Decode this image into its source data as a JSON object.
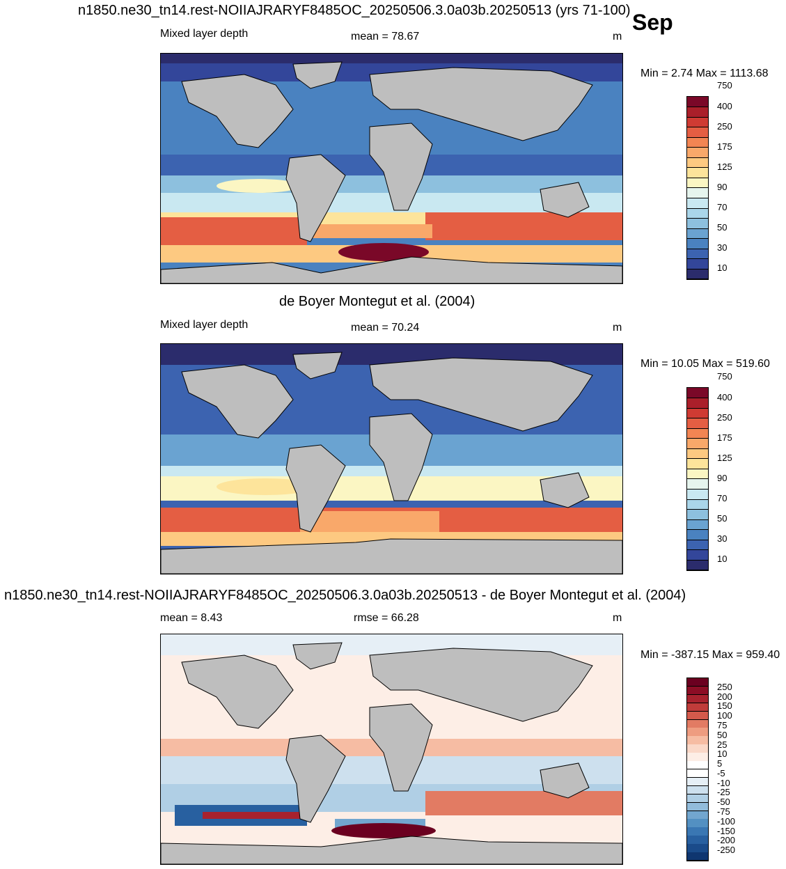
{
  "month": "Sep",
  "panels": [
    {
      "title": "n1850.ne30_tn14.rest-NOIIAJRARYF8485OC_20250506.3.0a03b.20250513 (yrs 71-100)",
      "left_label": "Mixed layer depth",
      "center_label": "mean =  78.67",
      "units": "m",
      "minmax": "Min =   2.74 Max = 1113.68",
      "colorbar": {
        "colors": [
          "#2b2c6c",
          "#33469a",
          "#3c63b0",
          "#4a82c0",
          "#6aa3d1",
          "#8dc0de",
          "#aad6ea",
          "#c9e8f1",
          "#e6f5ee",
          "#fbf6c3",
          "#fde49b",
          "#fdc981",
          "#f9a86a",
          "#f28553",
          "#e45e43",
          "#cf3b33",
          "#aa1f2a",
          "#7a0828"
        ],
        "ticks": [
          "10",
          "30",
          "50",
          "70",
          "90",
          "125",
          "175",
          "250",
          "400",
          "750"
        ]
      }
    },
    {
      "title": "de Boyer Montegut et al. (2004)",
      "left_label": "Mixed layer depth",
      "center_label": "mean =  70.24",
      "units": "m",
      "minmax": "Min =  10.05 Max = 519.60",
      "colorbar": {
        "colors": [
          "#2b2c6c",
          "#33469a",
          "#3c63b0",
          "#4a82c0",
          "#6aa3d1",
          "#8dc0de",
          "#aad6ea",
          "#c9e8f1",
          "#e6f5ee",
          "#fbf6c3",
          "#fde49b",
          "#fdc981",
          "#f9a86a",
          "#f28553",
          "#e45e43",
          "#cf3b33",
          "#aa1f2a",
          "#7a0828"
        ],
        "ticks": [
          "10",
          "30",
          "50",
          "70",
          "90",
          "125",
          "175",
          "250",
          "400",
          "750"
        ]
      }
    },
    {
      "title": "n1850.ne30_tn14.rest-NOIIAJRARYF8485OC_20250506.3.0a03b.20250513 - de Boyer Montegut et al. (2004)",
      "left_label": "mean =   8.43",
      "center_label": "rmse =  66.28",
      "units": "m",
      "minmax": "Min = -387.15 Max = 959.40",
      "colorbar": {
        "colors": [
          "#6b0020",
          "#8c0d25",
          "#a8222e",
          "#c03c3a",
          "#d45a4b",
          "#e27b63",
          "#ee9c80",
          "#f6bca3",
          "#fad8c8",
          "#fdeee6",
          "#ffffff",
          "#ffffff",
          "#e6eff6",
          "#cde0ee",
          "#b0cfe5",
          "#92bcdb",
          "#72a6cf",
          "#5390c2",
          "#3a77b3",
          "#2860a0",
          "#1a4b8a",
          "#0f3670"
        ],
        "ticks": [
          "250",
          "200",
          "150",
          "100",
          "75",
          "50",
          "25",
          "10",
          "5",
          "-5",
          "-10",
          "-25",
          "-50",
          "-75",
          "-100",
          "-150",
          "-200",
          "-250"
        ]
      }
    }
  ],
  "colors": {
    "land": "#bebebe",
    "ocean_deep_blue": "#33469a",
    "ocean_mid_blue": "#6aa3d1",
    "southern_red": "#e45e43"
  }
}
